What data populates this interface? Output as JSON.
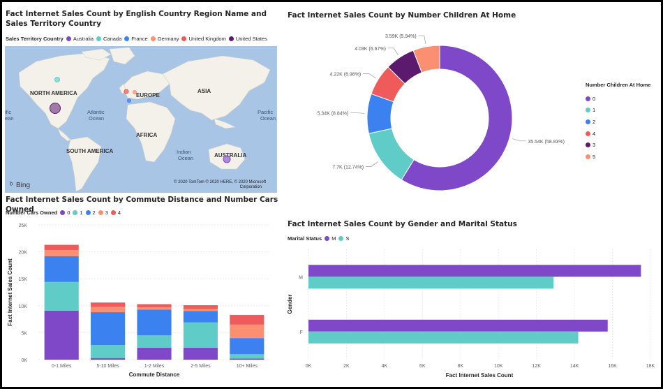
{
  "colors": {
    "c0": "#7f48c8",
    "c1": "#5fccc8",
    "c2": "#3b82f0",
    "c3": "#fa8f72",
    "c4": "#ef5a5a",
    "c5": "#5b1a6e",
    "australia": "#7f48c8",
    "canada": "#5fccc8",
    "france": "#3b82f0",
    "germany": "#fa8f72",
    "uk": "#ef5a5a",
    "us": "#5b1a6e",
    "land": "#f3f1ea",
    "water": "#a8c5e6"
  },
  "map_panel": {
    "title": "Fact Internet Sales Count by English Country Region Name and Sales Territory Country",
    "legend_title": "Sales Territory Country",
    "legend_items": [
      "Australia",
      "Canada",
      "France",
      "Germany",
      "United Kingdom",
      "United States"
    ],
    "labels": {
      "north_america": "NORTH AMERICA",
      "europe": "EUROPE",
      "asia": "ASIA",
      "africa": "AFRICA",
      "south_america": "SOUTH AMERICA",
      "australia": "AUSTRALIA",
      "atlantic1": "Atlantic",
      "atlantic2": "Ocean",
      "pacific_left1": "ific",
      "pacific_left2": "ean",
      "pacific_right1": "Pacific",
      "pacific_right2": "Ocean",
      "indian1": "Indian",
      "indian2": "Ocean"
    },
    "bing": "Bing",
    "copyright1": "© 2020 TomTom © 2020 HERE, © 2020 Microsoft",
    "copyright2": "Corporation"
  },
  "donut_panel": {
    "title": "Fact Internet Sales Count by Number Children At Home",
    "legend_title": "Number Children At Home",
    "legend_items": [
      "0",
      "1",
      "2",
      "4",
      "3",
      "5"
    ],
    "chart_data": {
      "type": "pie",
      "categories": [
        "0",
        "1",
        "2",
        "4",
        "3",
        "5"
      ],
      "values": [
        35540,
        7700,
        5340,
        4220,
        4030,
        3590
      ],
      "percents": [
        58.83,
        12.74,
        8.84,
        6.98,
        6.67,
        5.94
      ],
      "labels": [
        "35.54K (58.83%)",
        "7.7K (12.74%)",
        "5.34K (8.84%)",
        "4.22K (6.98%)",
        "4.03K (6.67%)",
        "3.59K (5.94%)"
      ],
      "legend_position": "right"
    }
  },
  "bar_panel": {
    "title": "Fact Internet Sales Count by Commute Distance and Number Cars Owned",
    "legend_title": "Number Cars Owned",
    "legend_items": [
      "0",
      "1",
      "2",
      "3",
      "4"
    ],
    "chart_data": {
      "type": "bar",
      "stacked": true,
      "categories": [
        "0-1 Miles",
        "5-10 Miles",
        "1-2 Miles",
        "2-5 Miles",
        "10+ Miles"
      ],
      "series": [
        {
          "name": "0",
          "values": [
            9100,
            300,
            2200,
            2200,
            200
          ]
        },
        {
          "name": "1",
          "values": [
            5300,
            2400,
            2300,
            4700,
            800
          ]
        },
        {
          "name": "2",
          "values": [
            4800,
            6100,
            4800,
            2100,
            3000
          ]
        },
        {
          "name": "3",
          "values": [
            1100,
            1000,
            400,
            400,
            2500
          ]
        },
        {
          "name": "4",
          "values": [
            1000,
            800,
            600,
            700,
            1800
          ]
        }
      ],
      "xlabel": "Commute Distance",
      "ylabel": "Fact Internet Sales Count",
      "yticks": [
        "0K",
        "5K",
        "10K",
        "15K",
        "20K",
        "25K"
      ],
      "ylim": [
        0,
        25000
      ],
      "grid": true,
      "legend_position": "top-left"
    }
  },
  "hbar_panel": {
    "title": "Fact Internet Sales Count by Gender and Marital Status",
    "legend_title": "Marital Status",
    "legend_items": [
      "M",
      "S"
    ],
    "chart_data": {
      "type": "bar",
      "orientation": "horizontal",
      "categories": [
        "M",
        "F"
      ],
      "series": [
        {
          "name": "M",
          "values": [
            17500,
            15750
          ]
        },
        {
          "name": "S",
          "values": [
            12900,
            14200
          ]
        }
      ],
      "xlabel": "Fact Internet Sales Count",
      "ylabel": "Gender",
      "xticks": [
        "0K",
        "2K",
        "4K",
        "6K",
        "8K",
        "10K",
        "12K",
        "14K",
        "16K",
        "18K"
      ],
      "xlim": [
        0,
        18000
      ],
      "grid": true,
      "legend_position": "top-left"
    }
  }
}
